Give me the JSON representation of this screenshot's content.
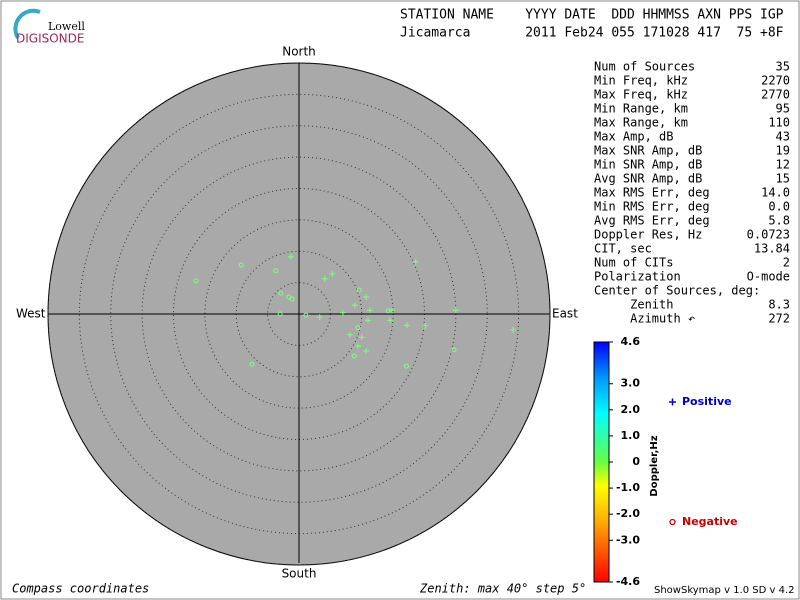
{
  "logo": {
    "top": "Lowell",
    "bottom": "DIGISONDE"
  },
  "header": {
    "columns": "STATION NAME    YYYY DATE  DDD HHMMSS AXN PPS IGP",
    "values": "Jicamarca       2011 Feb24 055 171028 417  75 +8F"
  },
  "stats": [
    [
      "Num of Sources",
      "35"
    ],
    [
      "Min Freq, kHz",
      "2270"
    ],
    [
      "Max Freq, kHz",
      "2770"
    ],
    [
      "Min Range, km",
      "95"
    ],
    [
      "Max Range, km",
      "110"
    ],
    [
      "Max Amp, dB",
      "43"
    ],
    [
      "Max SNR Amp, dB",
      "19"
    ],
    [
      "Min SNR Amp, dB",
      "12"
    ],
    [
      "Avg SNR Amp, dB",
      "15"
    ],
    [
      "Max RMS Err, deg",
      "14.0"
    ],
    [
      "Min RMS Err, deg",
      "0.0"
    ],
    [
      "Avg RMS Err, deg",
      "5.8"
    ],
    [
      "Doppler Res, Hz",
      "0.0723"
    ],
    [
      "CIT, sec",
      "13.84"
    ],
    [
      "Num of CITs",
      "2"
    ],
    [
      "Polarization",
      "O-mode"
    ],
    [
      "Center of Sources, deg:",
      ""
    ],
    [
      "     Zenith",
      "8.3"
    ],
    [
      "     Azimuth ↶",
      "272"
    ]
  ],
  "footer": {
    "left": "Compass coordinates",
    "center": "Zenith: max 40°  step 5°",
    "right": "ShowSkymap v 1.0  SD v 4.2"
  },
  "chart_data": {
    "type": "scatter",
    "directions": {
      "north": "North",
      "south": "South",
      "west": "West",
      "east": "East"
    },
    "rlim": [
      0,
      40
    ],
    "rticks": [
      5,
      10,
      15,
      20,
      25,
      30,
      35,
      40
    ],
    "point_color": "#7fff7f",
    "series": [
      {
        "name": "Positive",
        "marker": "+",
        "color": "#0000cc",
        "x": [
          -1.3,
          4.1,
          5.3,
          18.6,
          10.7,
          8.9,
          7.0,
          11.3,
          14.8,
          25.0,
          14.5,
          11.0,
          3.3,
          17.2,
          20.1,
          34.1,
          8.1,
          10.0,
          9.4,
          10.7
        ],
        "values": [
          9.1,
          5.6,
          6.4,
          8.3,
          2.7,
          1.4,
          0.2,
          0.6,
          0.6,
          0.6,
          -1.0,
          -1.0,
          -0.5,
          -1.8,
          -1.9,
          -2.5,
          -3.3,
          -3.7,
          -5.1,
          -5.9
        ]
      },
      {
        "name": "Negative",
        "marker": "o",
        "color": "#cc0000",
        "x": [
          -9.2,
          -16.4,
          -3.7,
          9.6,
          -2.9,
          -1.6,
          -1.1,
          14.2,
          -3.0,
          1.1,
          9.4,
          8.8,
          24.7,
          -7.5,
          17.1
        ],
        "values": [
          7.8,
          5.3,
          6.9,
          3.8,
          3.3,
          2.7,
          2.4,
          0.5,
          0.0,
          -0.2,
          -2.2,
          -6.7,
          -5.7,
          -8.0,
          -8.3
        ]
      }
    ],
    "colorbar": {
      "label": "Doppler,Hz",
      "lim": [
        -4.6,
        4.6
      ],
      "ticks": [
        4.6,
        {
          "value": 3,
          "label": "3.0"
        },
        {
          "value": 2,
          "label": "2.0"
        },
        {
          "value": 1,
          "label": "1.0"
        },
        0,
        {
          "value": -1,
          "label": "-1.0"
        },
        {
          "value": -2,
          "label": "-2.0"
        },
        {
          "value": -3,
          "label": "-3.0"
        },
        -4.6
      ]
    }
  }
}
